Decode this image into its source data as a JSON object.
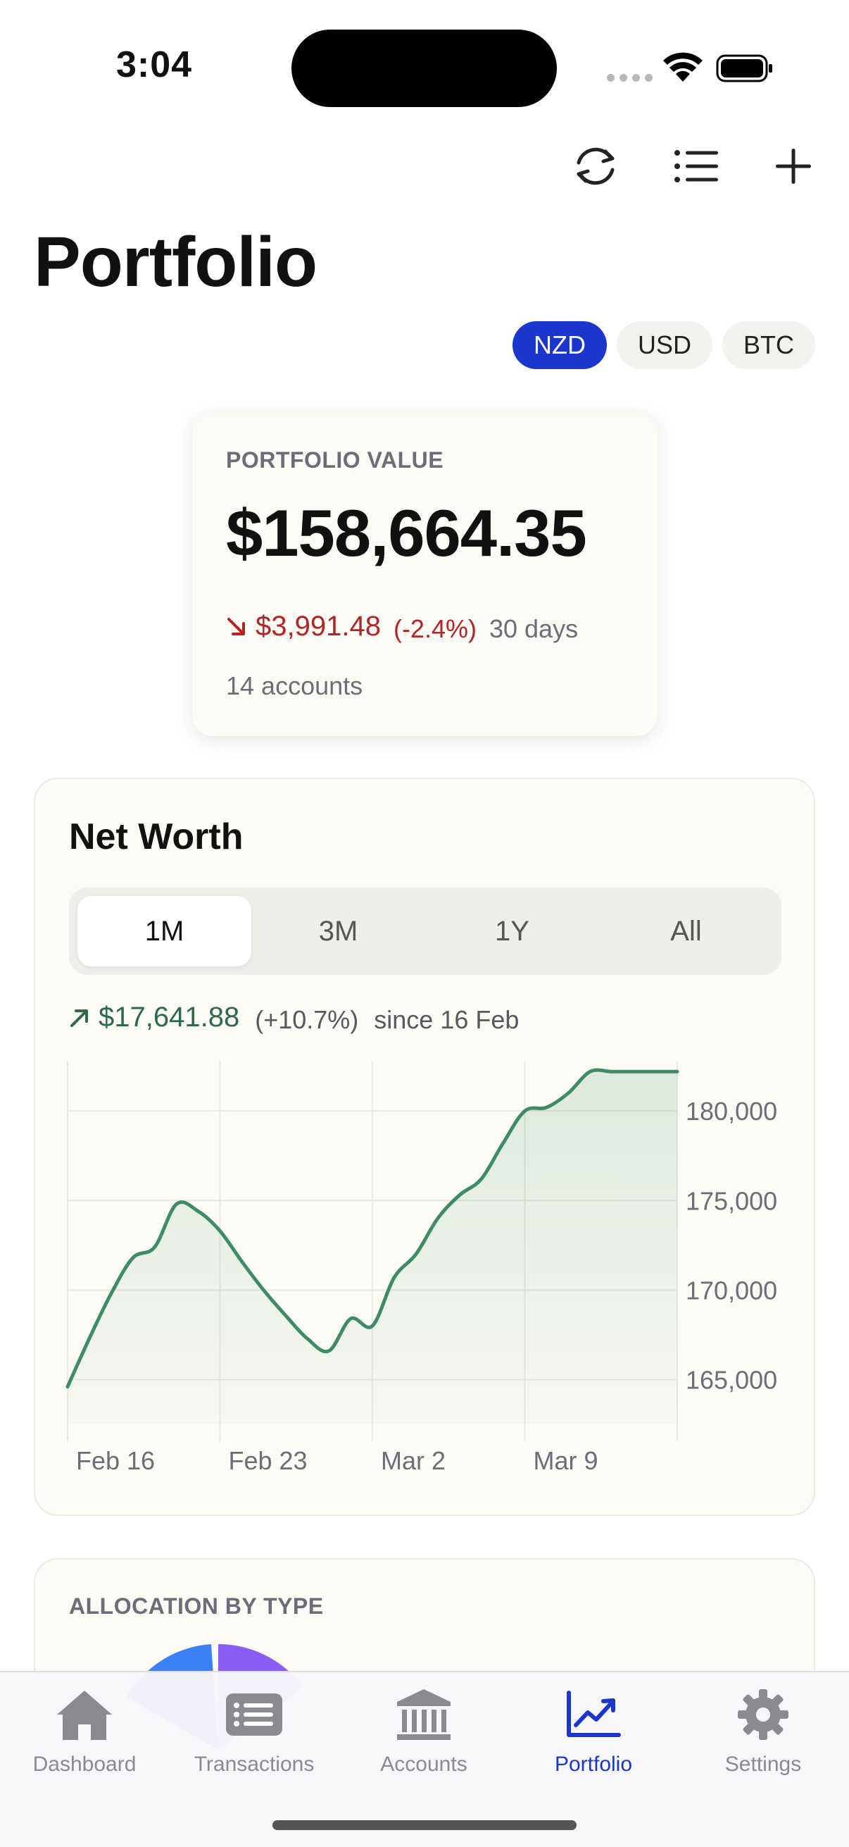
{
  "status_bar": {
    "time": "3:04"
  },
  "header": {
    "title": "Portfolio"
  },
  "currencies": [
    {
      "label": "NZD",
      "active": true
    },
    {
      "label": "USD",
      "active": false
    },
    {
      "label": "BTC",
      "active": false
    }
  ],
  "summary": {
    "label": "PORTFOLIO VALUE",
    "value": "$158,664.35",
    "change_amount": "$3,991.48",
    "change_percent": "(-2.4%)",
    "change_period": "30 days",
    "accounts": "14 accounts",
    "negative_color": "#b42424"
  },
  "networth": {
    "title": "Net Worth",
    "ranges": [
      {
        "label": "1M",
        "active": true
      },
      {
        "label": "3M",
        "active": false
      },
      {
        "label": "1Y",
        "active": false
      },
      {
        "label": "All",
        "active": false
      }
    ],
    "change_amount": "$17,641.88",
    "change_percent": "(+10.7%)",
    "since": "since 16 Feb",
    "positive_color": "#2d6a47"
  },
  "chart_data": {
    "type": "area",
    "title": "",
    "xlabel": "",
    "ylabel": "",
    "x_ticks": [
      "Feb 16",
      "Feb 23",
      "Mar 2",
      "Mar 9"
    ],
    "y_ticks": [
      165000,
      170000,
      175000,
      180000
    ],
    "y_tick_labels": [
      "165,000",
      "170,000",
      "175,000",
      "180,000"
    ],
    "ylim": [
      162500,
      182800
    ],
    "xlim": [
      0,
      28
    ],
    "x": [
      0,
      1,
      2,
      3,
      4,
      5,
      6,
      7,
      8,
      9,
      10,
      11,
      12,
      13,
      14,
      15,
      16,
      17,
      18,
      19,
      20,
      21,
      22,
      23,
      24,
      25,
      26,
      27,
      28
    ],
    "values": [
      164600,
      167300,
      169800,
      171800,
      172400,
      174800,
      174400,
      173300,
      171600,
      170000,
      168600,
      167300,
      166600,
      168400,
      168000,
      170700,
      172000,
      174000,
      175300,
      176200,
      178200,
      180000,
      180200,
      181000,
      182200,
      182200,
      182200,
      182200,
      182200
    ],
    "line_color": "#3e8d62",
    "grid": true,
    "y_axis_position": "right"
  },
  "allocation": {
    "title": "ALLOCATION BY TYPE"
  },
  "tabs": [
    {
      "label": "Dashboard",
      "active": false
    },
    {
      "label": "Transactions",
      "active": false
    },
    {
      "label": "Accounts",
      "active": false
    },
    {
      "label": "Portfolio",
      "active": true
    },
    {
      "label": "Settings",
      "active": false
    }
  ],
  "colors": {
    "accent": "#1a36cc",
    "tab_inactive": "#8a8b8f"
  }
}
